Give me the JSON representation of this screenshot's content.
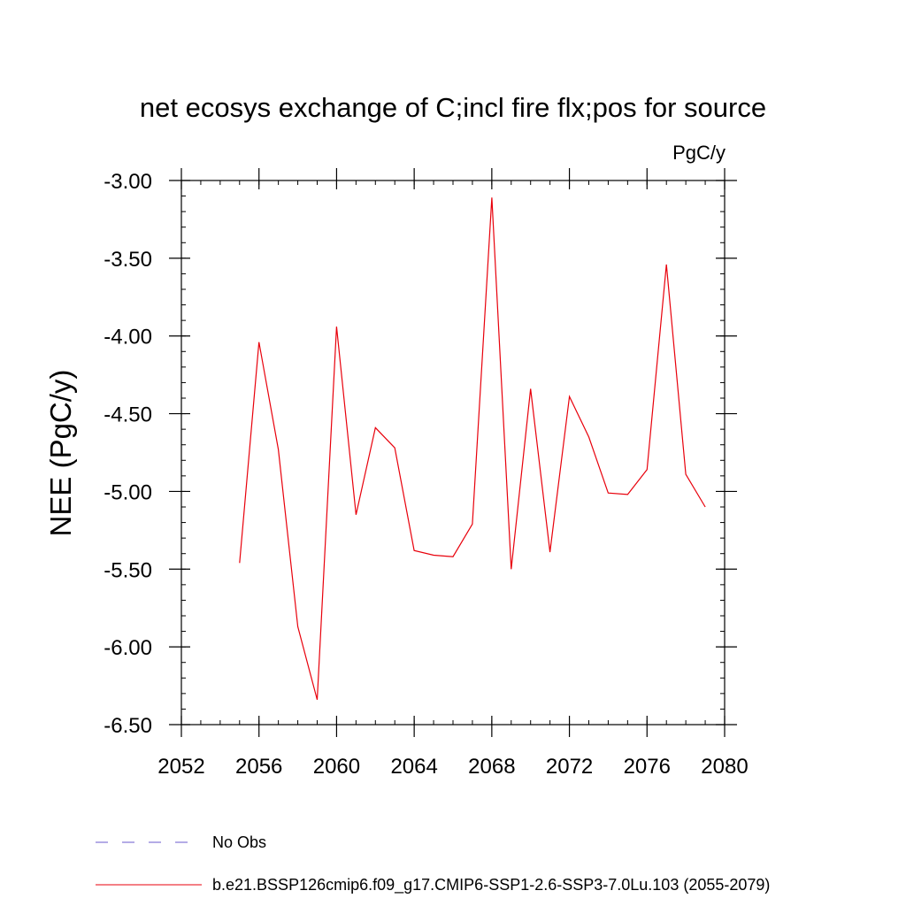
{
  "chart_data": {
    "type": "line",
    "title": "net ecosys exchange of C;incl fire flx;pos for source",
    "units": "PgC/y",
    "ylabel": "NEE  (PgC/y)",
    "xlabel": "",
    "xlim": [
      2052,
      2080
    ],
    "ylim": [
      -6.5,
      -3.0
    ],
    "x_ticks": [
      2052,
      2056,
      2060,
      2064,
      2068,
      2072,
      2076,
      2080
    ],
    "x_tick_labels": [
      "2052",
      "2056",
      "2060",
      "2064",
      "2068",
      "2072",
      "2076",
      "2080"
    ],
    "y_ticks": [
      -3.0,
      -3.5,
      -4.0,
      -4.5,
      -5.0,
      -5.5,
      -6.0,
      -6.5
    ],
    "y_tick_labels": [
      "-3.00",
      "-3.50",
      "-4.00",
      "-4.50",
      "-5.00",
      "-5.50",
      "-6.00",
      "-6.50"
    ],
    "grid": false,
    "legend_position": "bottom-left",
    "series": [
      {
        "name": "b.e21.BSSP126cmip6.f09_g17.CMIP6-SSP1-2.6-SSP3-7.0Lu.103 (2055-2079)",
        "color": "#e8000b",
        "style": "solid",
        "x": [
          2055,
          2056,
          2057,
          2058,
          2059,
          2060,
          2061,
          2062,
          2063,
          2064,
          2065,
          2066,
          2067,
          2068,
          2069,
          2070,
          2071,
          2072,
          2073,
          2074,
          2075,
          2076,
          2077,
          2078,
          2079
        ],
        "values": [
          -5.46,
          -4.04,
          -4.73,
          -5.87,
          -6.34,
          -3.94,
          -5.15,
          -4.59,
          -4.72,
          -5.38,
          -5.41,
          -5.42,
          -5.21,
          -3.11,
          -5.5,
          -4.34,
          -5.39,
          -4.39,
          -4.65,
          -5.01,
          -5.02,
          -4.86,
          -3.54,
          -4.89,
          -5.1
        ]
      }
    ],
    "legend": [
      {
        "label": "No Obs",
        "color": "#6a5acd",
        "style": "dashed"
      },
      {
        "label": "b.e21.BSSP126cmip6.f09_g17.CMIP6-SSP1-2.6-SSP3-7.0Lu.103 (2055-2079)",
        "color": "#e8000b",
        "style": "solid"
      }
    ]
  }
}
